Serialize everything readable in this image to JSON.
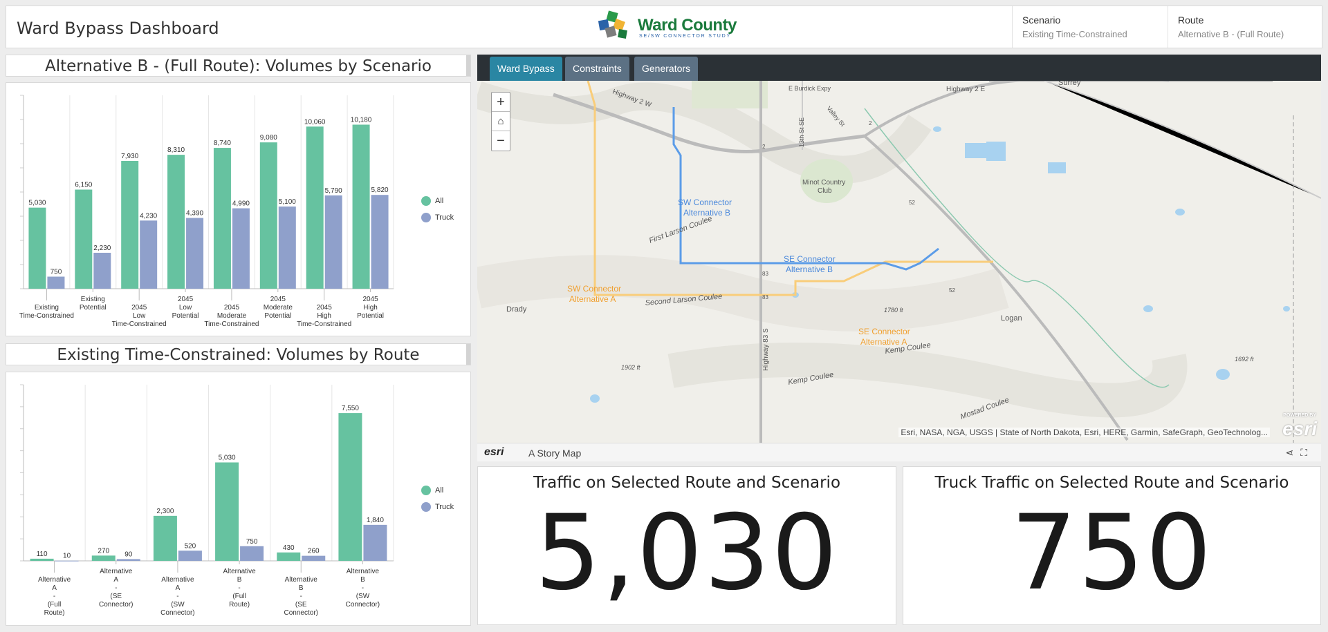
{
  "header": {
    "title": "Ward Bypass Dashboard",
    "logo_name": "Ward County",
    "logo_sub": "SE/SW CONNECTOR STUDY",
    "scenario_label": "Scenario",
    "scenario_value": "Existing Time-Constrained",
    "route_label": "Route",
    "route_value": "Alternative B - (Full Route)"
  },
  "chart1": {
    "title": "Alternative B - (Full Route): Volumes by Scenario",
    "chart_data": {
      "type": "bar",
      "categories": [
        [
          "Existing",
          "Time-Constrained"
        ],
        [
          "Existing",
          "Potential"
        ],
        [
          "2045",
          "Low",
          "Time-Constrained"
        ],
        [
          "2045",
          "Low",
          "Potential"
        ],
        [
          "2045",
          "Moderate",
          "Time-Constrained"
        ],
        [
          "2045",
          "Moderate",
          "Potential"
        ],
        [
          "2045",
          "High",
          "Time-Constrained"
        ],
        [
          "2045",
          "High",
          "Potential"
        ]
      ],
      "series": [
        {
          "name": "All",
          "values": [
            5030,
            6150,
            7930,
            8310,
            8740,
            9080,
            10060,
            10180
          ]
        },
        {
          "name": "Truck",
          "values": [
            750,
            2230,
            4230,
            4390,
            4990,
            5100,
            5790,
            5820
          ]
        }
      ],
      "value_labels": [
        [
          "5,030",
          "6,150",
          "7,930",
          "8,310",
          "8,740",
          "9,080",
          "10,060",
          "10,180"
        ],
        [
          "750",
          "2,230",
          "4,230",
          "4,390",
          "4,990",
          "5,100",
          "5,790",
          "5,820"
        ]
      ],
      "ylim": [
        0,
        12000
      ],
      "grid": true,
      "legend": "right"
    }
  },
  "chart2": {
    "title": "Existing Time-Constrained: Volumes by Route",
    "chart_data": {
      "type": "bar",
      "categories": [
        [
          "Alternative",
          "A",
          "-",
          "(Full",
          "Route)"
        ],
        [
          "Alternative",
          "A",
          "-",
          "(SE",
          "Connector)"
        ],
        [
          "Alternative",
          "A",
          "-",
          "(SW",
          "Connector)"
        ],
        [
          "Alternative",
          "B",
          "-",
          "(Full",
          "Route)"
        ],
        [
          "Alternative",
          "B",
          "-",
          "(SE",
          "Connector)"
        ],
        [
          "Alternative",
          "B",
          "-",
          "(SW",
          "Connector)"
        ]
      ],
      "series": [
        {
          "name": "All",
          "values": [
            110,
            270,
            2300,
            5030,
            430,
            7550
          ]
        },
        {
          "name": "Truck",
          "values": [
            10,
            90,
            520,
            750,
            260,
            1840
          ]
        }
      ],
      "value_labels": [
        [
          "110",
          "270",
          "2,300",
          "5,030",
          "430",
          "7,550"
        ],
        [
          "10",
          "90",
          "520",
          "750",
          "260",
          "1,840"
        ]
      ],
      "ylim": [
        0,
        9000
      ],
      "grid": true,
      "legend": "right"
    }
  },
  "colors": {
    "all": "#66c2a0",
    "truck": "#8fa0cb",
    "tab_active": "#2a86a3",
    "tab": "#5c7184"
  },
  "map": {
    "tabs": [
      "Ward Bypass",
      "Constraints",
      "Generators"
    ],
    "labels": {
      "sw_b": [
        "SW Connector",
        "Alternative B"
      ],
      "se_b": [
        "SE Connector",
        "Alternative B"
      ],
      "sw_a": [
        "SW Connector",
        "Alternative A"
      ],
      "se_a": [
        "SE Connector",
        "Alternative A"
      ],
      "places": [
        "Drady",
        "Logan",
        "Surrey",
        "Minot Country",
        "Club",
        "First Larson Coulee",
        "Second Larson Coulee",
        "Kemp Coulee",
        "Kemp Coulee",
        "Mostad Coulee",
        "Highway 83 S",
        "Highway 2 E",
        "E Burdick Expy",
        "13th St SE",
        "Valley St",
        "1780 ft",
        "1902 ft",
        "1692 ft",
        "Highway 2 W",
        "2",
        "2",
        "83",
        "83",
        "52",
        "52"
      ]
    },
    "attribution": "Esri, NASA, NGA, USGS | State of North Dakota, Esri, HERE, Garmin, SafeGraph, GeoTechnolog...",
    "powered_by": "POWERED BY",
    "esri_mark": "esri",
    "story_map": "A Story Map"
  },
  "kpi": {
    "traffic_title": "Traffic on Selected Route and Scenario",
    "traffic_value": "5,030",
    "truck_title": "Truck Traffic on Selected Route and Scenario",
    "truck_value": "750"
  }
}
